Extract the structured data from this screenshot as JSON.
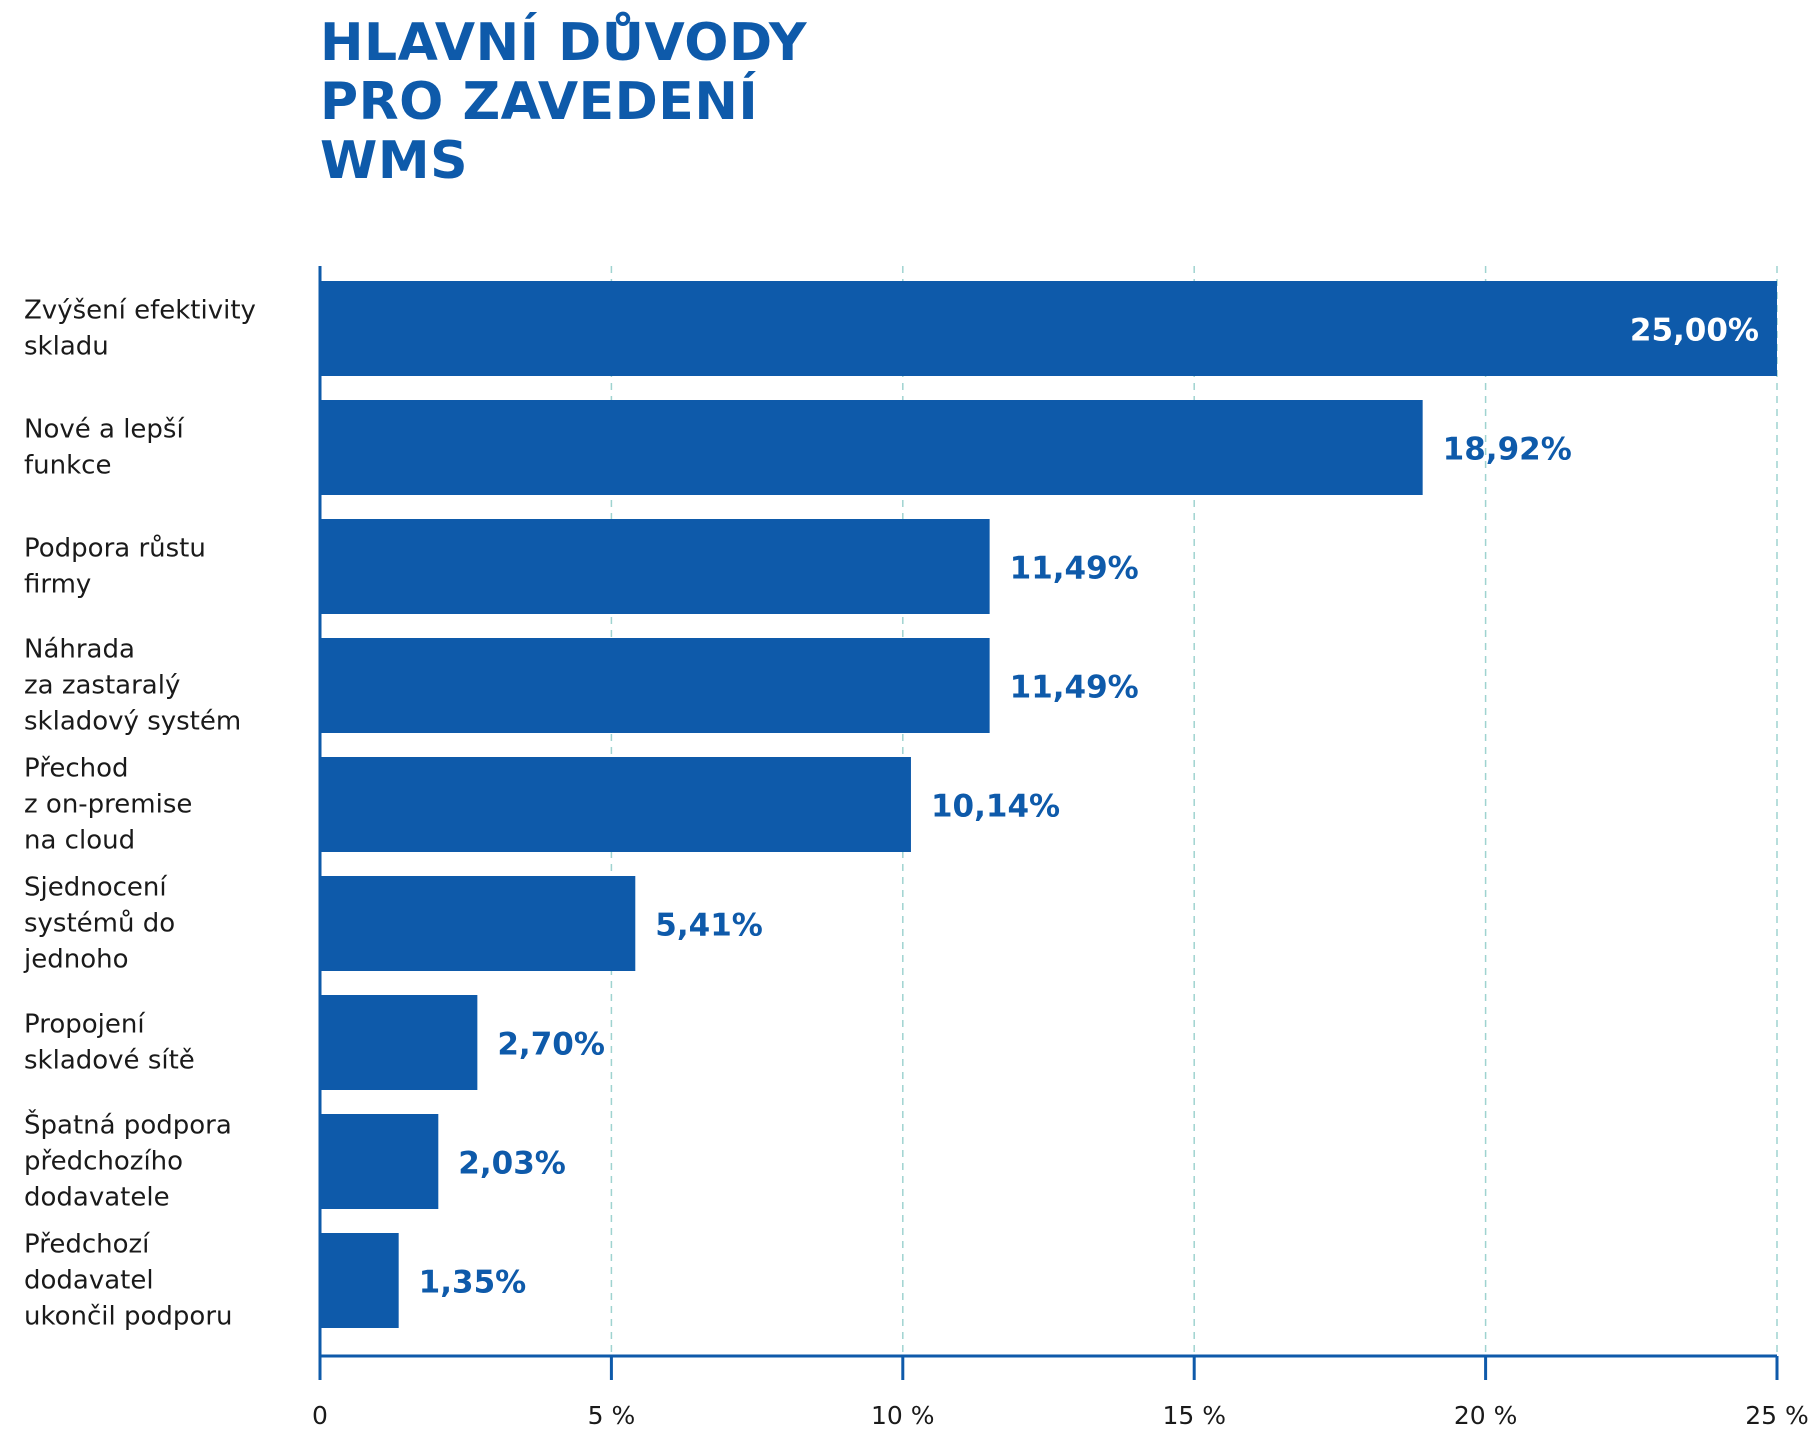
{
  "chart_data": {
    "type": "bar",
    "orientation": "horizontal",
    "title_lines": [
      "HLAVNÍ DŮVODY",
      "PRO ZAVEDENÍ",
      "WMS"
    ],
    "categories": [
      [
        "Zvýšení efektivity",
        "skladu"
      ],
      [
        "Nové a lepší",
        "funkce"
      ],
      [
        "Podpora růstu",
        "firmy"
      ],
      [
        "Náhrada",
        "za zastaralý",
        "skladový systém"
      ],
      [
        "Přechod",
        "z on-premise",
        "na cloud"
      ],
      [
        "Sjednocení",
        "systémů do",
        "jednoho"
      ],
      [
        "Propojení",
        "skladové sítě"
      ],
      [
        "Špatná podpora",
        "předchozího",
        "dodavatele"
      ],
      [
        "Předchozí",
        "dodavatel",
        "ukončil podporu"
      ]
    ],
    "values": [
      25.0,
      18.92,
      11.49,
      11.49,
      10.14,
      5.41,
      2.7,
      2.03,
      1.35
    ],
    "value_labels": [
      "25,00%",
      "18,92%",
      "11,49%",
      "11,49%",
      "10,14%",
      "5,41%",
      "2,70%",
      "2,03%",
      "1,35%"
    ],
    "xlim": [
      0,
      25
    ],
    "xticks": [
      0,
      5,
      10,
      15,
      20,
      25
    ],
    "xtick_labels": [
      "0",
      "5 %",
      "10 %",
      "15 %",
      "20 %",
      "25 %"
    ],
    "grid": "vertical-dashed",
    "colors": {
      "bar": "#0e5aaa",
      "title": "#0e5aaa",
      "value_label": "#0e5aaa",
      "value_label_inside": "#ffffff",
      "axis": "#0e5aaa",
      "grid": "#9fd3d0",
      "text": "#1a1a1a"
    }
  }
}
